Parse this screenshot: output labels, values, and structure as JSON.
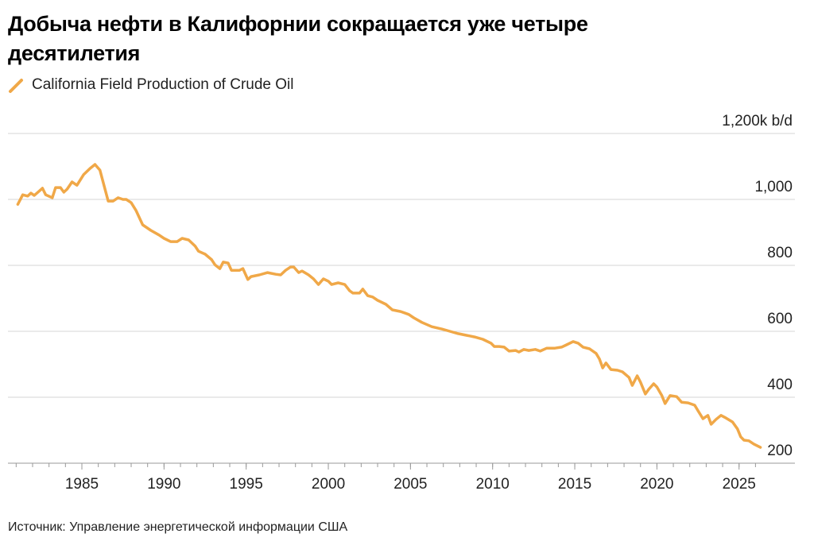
{
  "chart_data": {
    "type": "line",
    "title": "Добыча нефти в Калифорнии сокращается уже четыре десятилетия",
    "source": "Источник: Управление энергетической информации США",
    "series": [
      {
        "name": "California Field Production of Crude Oil",
        "color": "#f0a848",
        "x": [
          1981.1,
          1981.4,
          1981.7,
          1981.9,
          1982.1,
          1982.6,
          1982.8,
          1983.2,
          1983.4,
          1983.7,
          1983.9,
          1984.1,
          1984.4,
          1984.7,
          1985.1,
          1985.5,
          1985.8,
          1986.1,
          1986.6,
          1986.9,
          1987.2,
          1987.5,
          1987.7,
          1988.0,
          1988.3,
          1988.7,
          1989.2,
          1989.7,
          1990.0,
          1990.4,
          1990.8,
          1991.1,
          1991.5,
          1991.9,
          1992.1,
          1992.5,
          1992.9,
          1993.1,
          1993.4,
          1993.6,
          1993.9,
          1994.1,
          1994.6,
          1994.8,
          1995.1,
          1995.3,
          1995.8,
          1996.3,
          1996.8,
          1997.1,
          1997.4,
          1997.7,
          1997.9,
          1998.2,
          1998.4,
          1998.8,
          1999.1,
          1999.4,
          1999.7,
          2000.0,
          2000.2,
          2000.6,
          2001.0,
          2001.3,
          2001.5,
          2001.9,
          2002.1,
          2002.4,
          2002.7,
          2003.0,
          2003.5,
          2003.9,
          2004.4,
          2004.9,
          2005.2,
          2005.7,
          2006.3,
          2006.9,
          2007.4,
          2007.9,
          2008.4,
          2008.6,
          2008.9,
          2009.4,
          2009.9,
          2010.1,
          2010.4,
          2010.7,
          2011.0,
          2011.4,
          2011.6,
          2011.9,
          2012.2,
          2012.6,
          2012.9,
          2013.3,
          2013.8,
          2014.2,
          2014.5,
          2014.9,
          2015.2,
          2015.5,
          2015.9,
          2016.3,
          2016.5,
          2016.7,
          2016.9,
          2017.2,
          2017.6,
          2017.9,
          2018.3,
          2018.5,
          2018.8,
          2019.0,
          2019.3,
          2019.5,
          2019.8,
          2020.0,
          2020.3,
          2020.5,
          2020.8,
          2021.2,
          2021.5,
          2021.9,
          2022.3,
          2022.5,
          2022.8,
          2023.1,
          2023.3,
          2023.6,
          2023.9,
          2024.2,
          2024.6,
          2024.9,
          2025.1,
          2025.3,
          2025.6,
          2025.9,
          2026.3
        ],
        "values": [
          985,
          1014,
          1010,
          1019,
          1012,
          1034,
          1014,
          1005,
          1036,
          1036,
          1022,
          1031,
          1053,
          1043,
          1075,
          1094,
          1106,
          1089,
          995,
          995,
          1005,
          1000,
          1000,
          990,
          966,
          923,
          906,
          892,
          882,
          872,
          872,
          882,
          877,
          858,
          843,
          834,
          817,
          802,
          790,
          810,
          807,
          785,
          785,
          790,
          757,
          766,
          771,
          778,
          773,
          771,
          785,
          795,
          795,
          778,
          783,
          771,
          759,
          742,
          759,
          752,
          742,
          747,
          742,
          723,
          716,
          716,
          728,
          708,
          704,
          694,
          682,
          665,
          660,
          651,
          641,
          627,
          614,
          607,
          600,
          593,
          588,
          586,
          583,
          576,
          564,
          554,
          554,
          552,
          540,
          542,
          537,
          545,
          542,
          545,
          540,
          549,
          549,
          552,
          559,
          569,
          564,
          552,
          547,
          533,
          516,
          489,
          504,
          484,
          482,
          477,
          460,
          436,
          465,
          446,
          410,
          424,
          441,
          431,
          405,
          381,
          405,
          402,
          385,
          383,
          376,
          359,
          335,
          345,
          318,
          333,
          345,
          337,
          325,
          304,
          280,
          270,
          268,
          258,
          248
        ]
      }
    ],
    "xlim": [
      1980.5,
      2028.4
    ],
    "xticks": [
      1985,
      1990,
      1995,
      2000,
      2005,
      2010,
      2015,
      2020,
      2025
    ],
    "xminorticks": [
      1981,
      1982,
      1983,
      1984,
      1985,
      1986,
      1987,
      1988,
      1989,
      1990,
      1991,
      1992,
      1993,
      1994,
      1995,
      1996,
      1997,
      1998,
      1999,
      2000,
      2001,
      2002,
      2003,
      2004,
      2005,
      2006,
      2007,
      2008,
      2009,
      2010,
      2011,
      2012,
      2013,
      2014,
      2015,
      2016,
      2017,
      2018,
      2019,
      2020,
      2021,
      2022,
      2023,
      2024,
      2025,
      2026
    ],
    "ylim": [
      200,
      1200
    ],
    "yticks": [
      200,
      400,
      600,
      800,
      {
        "value": 1000,
        "label": "1,000"
      },
      {
        "value": 1200,
        "label": "1,200k b/d"
      }
    ],
    "grid": true
  }
}
